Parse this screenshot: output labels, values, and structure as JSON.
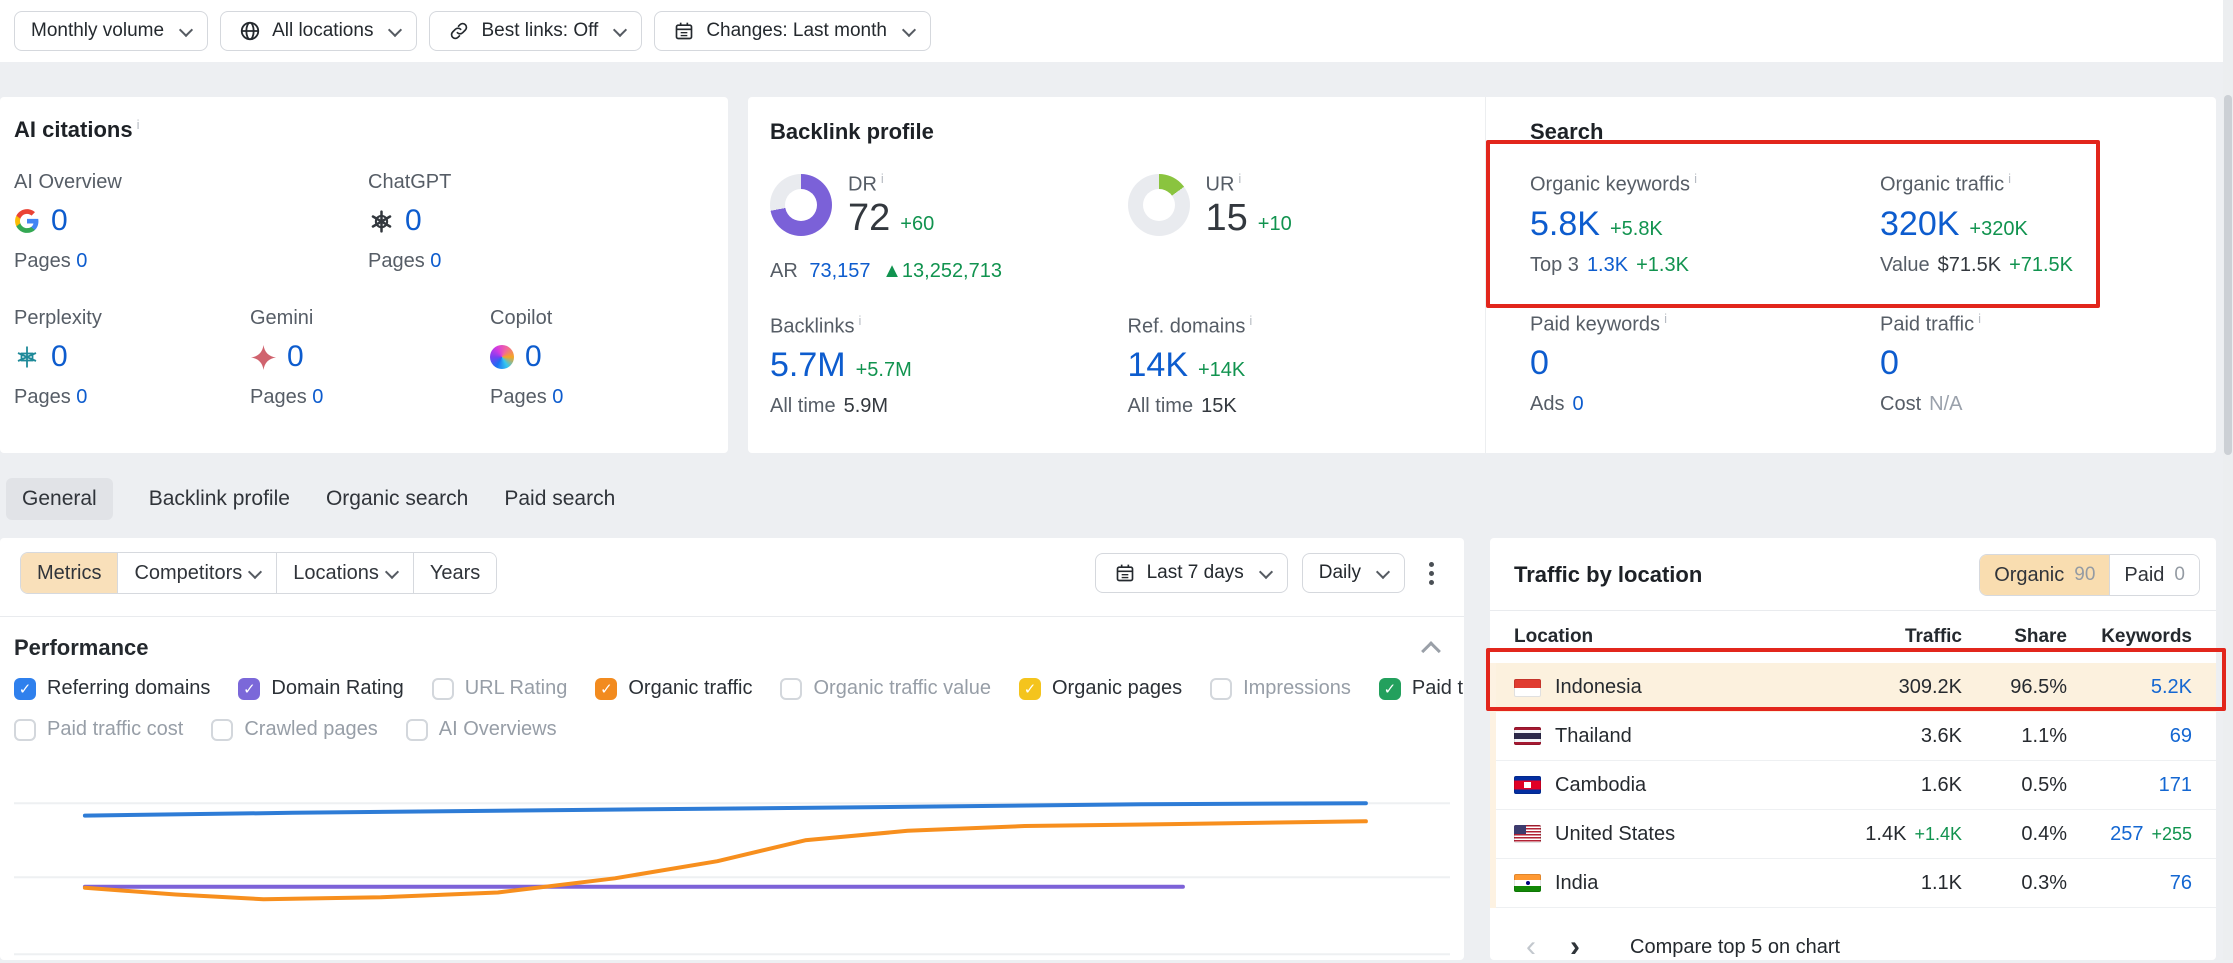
{
  "toolbar": {
    "monthly_volume": "Monthly volume",
    "all_locations": "All locations",
    "best_links": "Best links: Off",
    "changes": "Changes: Last month"
  },
  "ai_citations": {
    "title": "AI citations",
    "metrics": [
      {
        "name": "AI Overview",
        "value": "0",
        "pages_label": "Pages",
        "pages": "0"
      },
      {
        "name": "ChatGPT",
        "value": "0",
        "pages_label": "Pages",
        "pages": "0"
      },
      {
        "name": "Perplexity",
        "value": "0",
        "pages_label": "Pages",
        "pages": "0"
      },
      {
        "name": "Gemini",
        "value": "0",
        "pages_label": "Pages",
        "pages": "0"
      },
      {
        "name": "Copilot",
        "value": "0",
        "pages_label": "Pages",
        "pages": "0"
      }
    ]
  },
  "backlink_profile": {
    "title": "Backlink profile",
    "dr_label": "DR",
    "dr_value": "72",
    "dr_delta": "+60",
    "dr_percent": 72,
    "ar_label": "AR",
    "ar_value": "73,157",
    "ar_delta": "▲13,252,713",
    "ur_label": "UR",
    "ur_value": "15",
    "ur_delta": "+10",
    "ur_percent": 15,
    "backlinks_label": "Backlinks",
    "backlinks_value": "5.7M",
    "backlinks_delta": "+5.7M",
    "backlinks_alltime_label": "All time",
    "backlinks_alltime": "5.9M",
    "refdomains_label": "Ref. domains",
    "refdomains_value": "14K",
    "refdomains_delta": "+14K",
    "refdomains_alltime_label": "All time",
    "refdomains_alltime": "15K"
  },
  "search": {
    "title": "Search",
    "organic_keywords": {
      "label": "Organic keywords",
      "value": "5.8K",
      "delta": "+5.8K",
      "sub_label": "Top 3",
      "sub_value": "1.3K",
      "sub_delta": "+1.3K"
    },
    "organic_traffic": {
      "label": "Organic traffic",
      "value": "320K",
      "delta": "+320K",
      "sub_label": "Value",
      "sub_value": "$71.5K",
      "sub_delta": "+71.5K"
    },
    "paid_keywords": {
      "label": "Paid keywords",
      "value": "0",
      "sub_label": "Ads",
      "sub_value": "0"
    },
    "paid_traffic": {
      "label": "Paid traffic",
      "value": "0",
      "sub_label": "Cost",
      "sub_value": "N/A"
    }
  },
  "tabs": [
    {
      "label": "General",
      "active": true
    },
    {
      "label": "Backlink profile",
      "active": false
    },
    {
      "label": "Organic search",
      "active": false
    },
    {
      "label": "Paid search",
      "active": false
    }
  ],
  "performance": {
    "segments": [
      {
        "label": "Metrics",
        "active": true
      },
      {
        "label": "Competitors",
        "active": false
      },
      {
        "label": "Locations",
        "active": false
      },
      {
        "label": "Years",
        "active": false
      }
    ],
    "date_range": "Last 7 days",
    "granularity": "Daily",
    "title": "Performance",
    "checkboxes": [
      {
        "label": "Referring domains",
        "checked": true,
        "color": "#2f80ed"
      },
      {
        "label": "Domain Rating",
        "checked": true,
        "color": "#7b68d9"
      },
      {
        "label": "URL Rating",
        "checked": false
      },
      {
        "label": "Organic traffic",
        "checked": true,
        "color": "#f28b1f"
      },
      {
        "label": "Organic traffic value",
        "checked": false
      },
      {
        "label": "Organic pages",
        "checked": true,
        "color": "#f4c41d"
      },
      {
        "label": "Impressions",
        "checked": false
      },
      {
        "label": "Paid traffic",
        "checked": true,
        "color": "#23a05d"
      },
      {
        "label": "Paid traffic cost",
        "checked": false
      },
      {
        "label": "Crawled pages",
        "checked": false
      },
      {
        "label": "AI Overviews",
        "checked": false
      }
    ]
  },
  "chart_data": {
    "type": "line",
    "title": "Performance",
    "x_axis_labels": [],
    "y_axis_labels": [],
    "note": "axis labels cropped out of the visible screenshot; points are percent of plot width/height",
    "gridlines_pct": [
      17.5,
      56.5,
      97
    ],
    "series": [
      {
        "name": "Domain Rating",
        "color": "#7d62d8",
        "points": [
          [
            5.8,
            61.5
          ],
          [
            80.8,
            61.5
          ]
        ]
      },
      {
        "name": "Organic traffic",
        "color": "#f78f1e",
        "points": [
          [
            5.8,
            62
          ],
          [
            12,
            65.5
          ],
          [
            18,
            68
          ],
          [
            26,
            67
          ],
          [
            34,
            64.5
          ],
          [
            42,
            57
          ],
          [
            49,
            48
          ],
          [
            55,
            37
          ],
          [
            62,
            32
          ],
          [
            70,
            29.5
          ],
          [
            80,
            28.5
          ],
          [
            93.3,
            27
          ]
        ]
      },
      {
        "name": "Referring domains",
        "color": "#2e7cd6",
        "points": [
          [
            5.8,
            24
          ],
          [
            20,
            22.5
          ],
          [
            40,
            21
          ],
          [
            60,
            19.5
          ],
          [
            78,
            18
          ],
          [
            93.3,
            17.5
          ]
        ]
      }
    ]
  },
  "traffic_by_location": {
    "title": "Traffic by location",
    "organic_label": "Organic",
    "organic_count": "90",
    "paid_label": "Paid",
    "paid_count": "0",
    "columns": [
      "Location",
      "Traffic",
      "Share",
      "Keywords"
    ],
    "rows": [
      {
        "location": "Indonesia",
        "traffic": "309.2K",
        "traffic_delta": "",
        "share": "96.5%",
        "keywords": "5.2K",
        "keywords_delta": "",
        "highlighted": true
      },
      {
        "location": "Thailand",
        "traffic": "3.6K",
        "traffic_delta": "",
        "share": "1.1%",
        "keywords": "69",
        "keywords_delta": ""
      },
      {
        "location": "Cambodia",
        "traffic": "1.6K",
        "traffic_delta": "",
        "share": "0.5%",
        "keywords": "171",
        "keywords_delta": ""
      },
      {
        "location": "United States",
        "traffic": "1.4K",
        "traffic_delta": "+1.4K",
        "share": "0.4%",
        "keywords": "257",
        "keywords_delta": "+255"
      },
      {
        "location": "India",
        "traffic": "1.1K",
        "traffic_delta": "",
        "share": "0.3%",
        "keywords": "76",
        "keywords_delta": ""
      }
    ],
    "footer": "Compare top 5 on chart"
  },
  "colors": {
    "value_blue": "#0d5cce",
    "delta_green": "#11934f",
    "annotation_red": "#e2261c",
    "dr_donut_purple": "#7b61d8",
    "ur_donut_green": "#8ac43f",
    "active_segment_tan": "#f9e0ba",
    "highlight_row_tan": "#fcf1de"
  }
}
